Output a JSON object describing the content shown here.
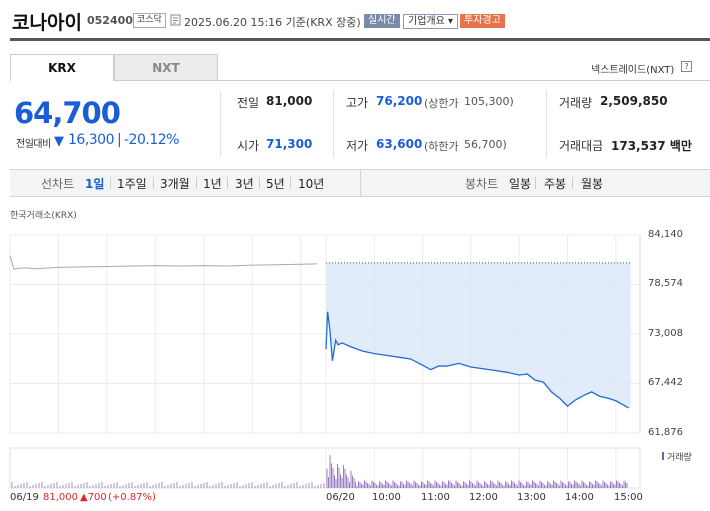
{
  "header": {
    "title": "코나아이",
    "code": "052400",
    "market": "코스닥",
    "date": "2025.06.20 15:16  기준(KRX 장중)",
    "realtime": "실시간",
    "company_info": "기업개요",
    "warning": "투자경고"
  },
  "tabs": {
    "krx": "KRX",
    "nxt": "NXT",
    "nxt_link": "넥스트레이드(NXT)",
    "help": "?"
  },
  "price": {
    "current": "64,700",
    "vs_label": "전일대비",
    "direction_icon": "down-triangle",
    "change": "16,300",
    "change_pct": "-20.12%"
  },
  "quote": {
    "prev_close": {
      "label": "전일",
      "value": "81,000"
    },
    "open": {
      "label": "시가",
      "value": "71,300"
    },
    "high": {
      "label": "고가",
      "value": "76,200",
      "limit_label": "(상한가",
      "limit_value": "105,300)"
    },
    "low": {
      "label": "저가",
      "value": "63,600",
      "limit_label": "(하한가",
      "limit_value": "56,700)"
    },
    "volume": {
      "label": "거래량",
      "value": "2,509,850"
    },
    "amount": {
      "label": "거래대금",
      "value": "173,537 백만"
    }
  },
  "periods": {
    "line_label": "선차트",
    "line_items": [
      "1일",
      "1주일",
      "3개월",
      "1년",
      "3년",
      "5년",
      "10년"
    ],
    "selected": "1일",
    "candle_label": "봉차트",
    "candle_items": [
      "일봉",
      "주봉",
      "월봉"
    ]
  },
  "chart": {
    "exchange_label": "한국거래소(KRX)",
    "volume_legend": "거래량",
    "y_ticks": [
      "84,140",
      "78,574",
      "73,008",
      "67,442",
      "61,876"
    ],
    "x_ticks": [
      "06/20",
      "10:00",
      "11:00",
      "12:00",
      "13:00",
      "14:00",
      "15:00"
    ],
    "prev_day": {
      "date": "06/19",
      "close": "81,000",
      "change": "▲700",
      "pct": "(+0.87%)"
    }
  },
  "chart_data": {
    "type": "line",
    "ylim": [
      61876,
      84140
    ],
    "ytick_values": [
      84140,
      78574,
      73008,
      67442,
      61876
    ],
    "prev_close": 81000,
    "series": [
      {
        "name": "06/19",
        "x": [
          "09:00",
          "09:05",
          "09:10",
          "09:20",
          "09:30",
          "10:00",
          "10:30",
          "11:00",
          "11:30",
          "12:00",
          "12:30",
          "13:00",
          "13:30",
          "14:00",
          "14:30",
          "15:00",
          "15:20"
        ],
        "values": [
          81800,
          80300,
          80400,
          80450,
          80350,
          80500,
          80550,
          80600,
          80650,
          80700,
          80650,
          80700,
          80650,
          80750,
          80800,
          80850,
          80900
        ]
      },
      {
        "name": "06/20",
        "x": [
          "09:00",
          "09:02",
          "09:05",
          "09:08",
          "09:12",
          "09:15",
          "09:20",
          "09:30",
          "09:45",
          "10:00",
          "10:15",
          "10:30",
          "10:45",
          "11:00",
          "11:10",
          "11:20",
          "11:30",
          "11:45",
          "12:00",
          "12:15",
          "12:30",
          "12:45",
          "13:00",
          "13:10",
          "13:20",
          "13:30",
          "13:40",
          "13:50",
          "14:00",
          "14:10",
          "14:20",
          "14:30",
          "14:40",
          "14:50",
          "15:00",
          "15:10",
          "15:16"
        ],
        "values": [
          71300,
          75500,
          73300,
          70000,
          72300,
          71800,
          72000,
          71600,
          71100,
          70800,
          70600,
          70400,
          70200,
          69500,
          69000,
          69400,
          69400,
          69700,
          69300,
          69100,
          68900,
          68700,
          68400,
          68500,
          67800,
          67600,
          66500,
          65800,
          64900,
          65600,
          66100,
          66500,
          66000,
          65800,
          65500,
          65000,
          64700
        ]
      }
    ]
  }
}
